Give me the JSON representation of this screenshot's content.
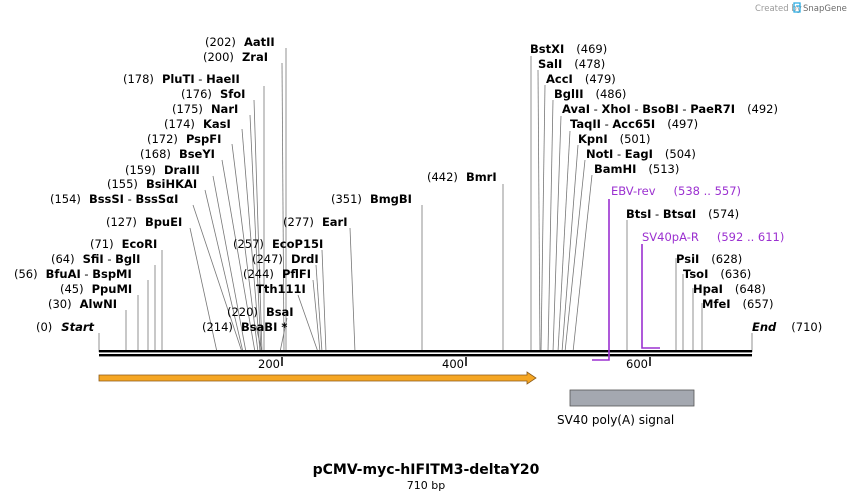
{
  "credit": {
    "created_by": "Created by",
    "brand": "SnapGene"
  },
  "map": {
    "title": "pCMV-myc-hIFITM3-deltaY20",
    "length_label": "710 bp",
    "length_bp": 710
  },
  "colors": {
    "primer": "#9b30d0",
    "orf_fill": "#f5a623",
    "orf_outline": "#8a5a1a",
    "polyA_fill": "#a4a8b0",
    "backbone": "#000000"
  },
  "ends": [
    {
      "id": "start",
      "name": "Start",
      "pos": "(0)"
    },
    {
      "id": "end",
      "name": "End",
      "pos": "(710)"
    }
  ],
  "sites": [
    {
      "id": "aatii",
      "pos": "(202)",
      "names": [
        "AatII"
      ],
      "bp": 202
    },
    {
      "id": "zrai",
      "pos": "(200)",
      "names": [
        "ZraI"
      ],
      "bp": 200
    },
    {
      "id": "pluti",
      "pos": "(178)",
      "names": [
        "PluTI",
        "HaeII"
      ],
      "bp": 178
    },
    {
      "id": "sfoi",
      "pos": "(176)",
      "names": [
        "SfoI"
      ],
      "bp": 176
    },
    {
      "id": "nari",
      "pos": "(175)",
      "names": [
        "NarI"
      ],
      "bp": 175
    },
    {
      "id": "kasi",
      "pos": "(174)",
      "names": [
        "KasI"
      ],
      "bp": 174
    },
    {
      "id": "pspfi",
      "pos": "(172)",
      "names": [
        "PspFI"
      ],
      "bp": 172
    },
    {
      "id": "bseyi",
      "pos": "(168)",
      "names": [
        "BseYI"
      ],
      "bp": 168
    },
    {
      "id": "draiii",
      "pos": "(159)",
      "names": [
        "DraIII"
      ],
      "bp": 159
    },
    {
      "id": "bsihkai",
      "pos": "(155)",
      "names": [
        "BsiHKAI"
      ],
      "bp": 155
    },
    {
      "id": "bsssi",
      "pos": "(154)",
      "names": [
        "BssSI",
        "BssSαI"
      ],
      "bp": 154
    },
    {
      "id": "bpuei",
      "pos": "(127)",
      "names": [
        "BpuEI"
      ],
      "bp": 127
    },
    {
      "id": "ecori",
      "pos": "(71)",
      "names": [
        "EcoRI"
      ],
      "bp": 71
    },
    {
      "id": "sfii",
      "pos": "(64)",
      "names": [
        "SfiI",
        "BglI"
      ],
      "bp": 64
    },
    {
      "id": "bfuai",
      "pos": "(56)",
      "names": [
        "BfuAI",
        "BspMI"
      ],
      "bp": 56
    },
    {
      "id": "ppumi",
      "pos": "(45)",
      "names": [
        "PpuMI"
      ],
      "bp": 45
    },
    {
      "id": "alwni",
      "pos": "(30)",
      "names": [
        "AlwNI"
      ],
      "bp": 30
    },
    {
      "id": "ecop15i",
      "pos": "(257)",
      "names": [
        "EcoP15I"
      ],
      "bp": 257
    },
    {
      "id": "drdi",
      "pos": "(247)",
      "names": [
        "DrdI"
      ],
      "bp": 247
    },
    {
      "id": "pflfi",
      "pos": "(244)",
      "names": [
        "PflFI"
      ],
      "bp": 244
    },
    {
      "id": "tth111i",
      "pos": "",
      "names": [
        "Tth111I"
      ],
      "bp": 244
    },
    {
      "id": "bsai",
      "pos": "(220)",
      "names": [
        "BsaI"
      ],
      "bp": 220
    },
    {
      "id": "bsabi",
      "pos": "(214)",
      "names": [
        "BsaBI *"
      ],
      "bp": 214
    },
    {
      "id": "eari",
      "pos": "(277)",
      "names": [
        "EarI"
      ],
      "bp": 277
    },
    {
      "id": "bmgbi",
      "pos": "(351)",
      "names": [
        "BmgBI"
      ],
      "bp": 351
    },
    {
      "id": "bmri",
      "pos": "(442)",
      "names": [
        "BmrI"
      ],
      "bp": 442
    },
    {
      "id": "bstxi",
      "pos": "(469)",
      "names": [
        "BstXI"
      ],
      "bp": 469
    },
    {
      "id": "sali",
      "pos": "(478)",
      "names": [
        "SalI"
      ],
      "bp": 478
    },
    {
      "id": "acci",
      "pos": "(479)",
      "names": [
        "AccI"
      ],
      "bp": 479
    },
    {
      "id": "bglii",
      "pos": "(486)",
      "names": [
        "BglII"
      ],
      "bp": 486
    },
    {
      "id": "avai",
      "pos": "(492)",
      "names": [
        "AvaI",
        "XhoI",
        "BsoBI",
        "PaeR7I"
      ],
      "bp": 492
    },
    {
      "id": "taqii",
      "pos": "(497)",
      "names": [
        "TaqII",
        "Acc65I"
      ],
      "bp": 497
    },
    {
      "id": "kpni",
      "pos": "(501)",
      "names": [
        "KpnI"
      ],
      "bp": 501
    },
    {
      "id": "noti",
      "pos": "(504)",
      "names": [
        "NotI",
        "EagI"
      ],
      "bp": 504
    },
    {
      "id": "bamhi",
      "pos": "(513)",
      "names": [
        "BamHI"
      ],
      "bp": 513
    },
    {
      "id": "btsi",
      "pos": "(574)",
      "names": [
        "BtsI",
        "BtsαI"
      ],
      "bp": 574
    },
    {
      "id": "psii",
      "pos": "(628)",
      "names": [
        "PsiI"
      ],
      "bp": 628
    },
    {
      "id": "tsoi",
      "pos": "(636)",
      "names": [
        "TsoI"
      ],
      "bp": 636
    },
    {
      "id": "hpai",
      "pos": "(648)",
      "names": [
        "HpaI"
      ],
      "bp": 648
    },
    {
      "id": "mfei",
      "pos": "(657)",
      "names": [
        "MfeI"
      ],
      "bp": 657
    }
  ],
  "primers": [
    {
      "id": "ebv-rev",
      "name": "EBV-rev",
      "range": "(538 .. 557)",
      "start": 538,
      "end": 557,
      "direction": "reverse"
    },
    {
      "id": "sv40pa-r",
      "name": "SV40pA-R",
      "range": "(592 .. 611)",
      "start": 592,
      "end": 611,
      "direction": "reverse"
    }
  ],
  "ticks": [
    {
      "label": "200",
      "bp": 200
    },
    {
      "label": "400",
      "bp": 400
    },
    {
      "label": "600",
      "bp": 600
    }
  ],
  "features": [
    {
      "id": "orf",
      "name": "",
      "start": 1,
      "end": 476,
      "type": "arrow"
    },
    {
      "id": "sv40-polya",
      "name": "SV40 poly(A) signal",
      "start": 514,
      "end": 648,
      "type": "box"
    }
  ]
}
